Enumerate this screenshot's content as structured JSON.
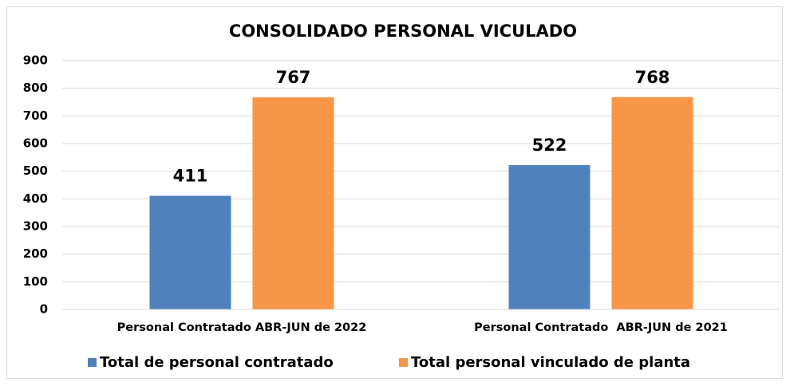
{
  "chart_data": {
    "type": "bar",
    "title": "CONSOLIDADO PERSONAL VICULADO",
    "categories": [
      "Personal Contratado ABR-JUN de 2022",
      "Personal Contratado  ABR-JUN de 2021"
    ],
    "series": [
      {
        "name": "Total de personal contratado",
        "color": "#4f81bd",
        "values": [
          411,
          522
        ]
      },
      {
        "name": "Total personal vinculado de planta",
        "color": "#f79646",
        "values": [
          767,
          768
        ]
      }
    ],
    "ylim": [
      0,
      900
    ],
    "yticks": [
      0,
      100,
      200,
      300,
      400,
      500,
      600,
      700,
      800,
      900
    ],
    "grid": true,
    "legend": "bottom"
  }
}
